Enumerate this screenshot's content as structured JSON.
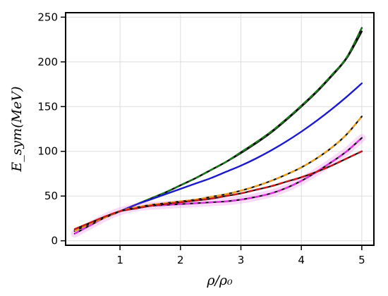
{
  "chart_data": {
    "type": "line",
    "xlabel": "ρ/ρ₀",
    "ylabel": "E_sym(MeV)",
    "xlim": [
      0.1,
      5.2
    ],
    "ylim": [
      -5,
      255
    ],
    "x_ticks": [
      1,
      2,
      3,
      4,
      5
    ],
    "y_ticks": [
      0,
      50,
      100,
      150,
      200,
      250
    ],
    "x_tick_labels": [
      "1",
      "2",
      "3",
      "4",
      "5"
    ],
    "y_tick_labels": [
      "0",
      "50",
      "100",
      "150",
      "200",
      "250"
    ],
    "grid": true,
    "legend": "none",
    "x": [
      0.25,
      0.5,
      0.75,
      1.0,
      1.25,
      1.5,
      1.75,
      2.0,
      2.25,
      2.5,
      2.75,
      3.0,
      3.25,
      3.5,
      3.75,
      4.0,
      4.25,
      4.5,
      4.75,
      5.0
    ],
    "series": [
      {
        "color": "#1a7a1a",
        "dashed": true,
        "values": [
          11,
          19,
          26,
          33,
          40,
          47,
          54,
          62,
          70,
          79,
          88,
          99,
          110,
          122,
          136,
          151,
          167,
          185,
          205,
          238
        ]
      },
      {
        "color": "#111111",
        "dashed": false,
        "values": [
          11,
          19,
          26,
          33,
          40,
          47,
          54,
          62,
          70,
          79,
          88,
          98,
          109,
          121,
          135,
          150,
          166,
          184,
          204,
          234
        ]
      },
      {
        "color": "#1a1acc",
        "dashed": false,
        "values": [
          11,
          19,
          26,
          33,
          40,
          46,
          52,
          58,
          64,
          70,
          77,
          84,
          92,
          101,
          111,
          122,
          134,
          147,
          161,
          176
        ]
      },
      {
        "color": "#e8a020",
        "dashed": true,
        "values": [
          11,
          19,
          26,
          33,
          37,
          40,
          42,
          44,
          46,
          49,
          52,
          56,
          61,
          67,
          74,
          82,
          92,
          104,
          119,
          139
        ]
      },
      {
        "color": "#cc1a1a",
        "dashed": true,
        "values": [
          13,
          20,
          27,
          33,
          36,
          39,
          41,
          43,
          45,
          47,
          50,
          53,
          57,
          61,
          66,
          71,
          77,
          84,
          92,
          100
        ]
      },
      {
        "color": "#dd33dd",
        "dashed": true,
        "values": [
          8,
          17,
          26,
          33,
          37,
          39,
          40,
          41,
          42,
          43,
          44,
          46,
          49,
          53,
          59,
          67,
          77,
          88,
          100,
          115
        ]
      }
    ]
  }
}
